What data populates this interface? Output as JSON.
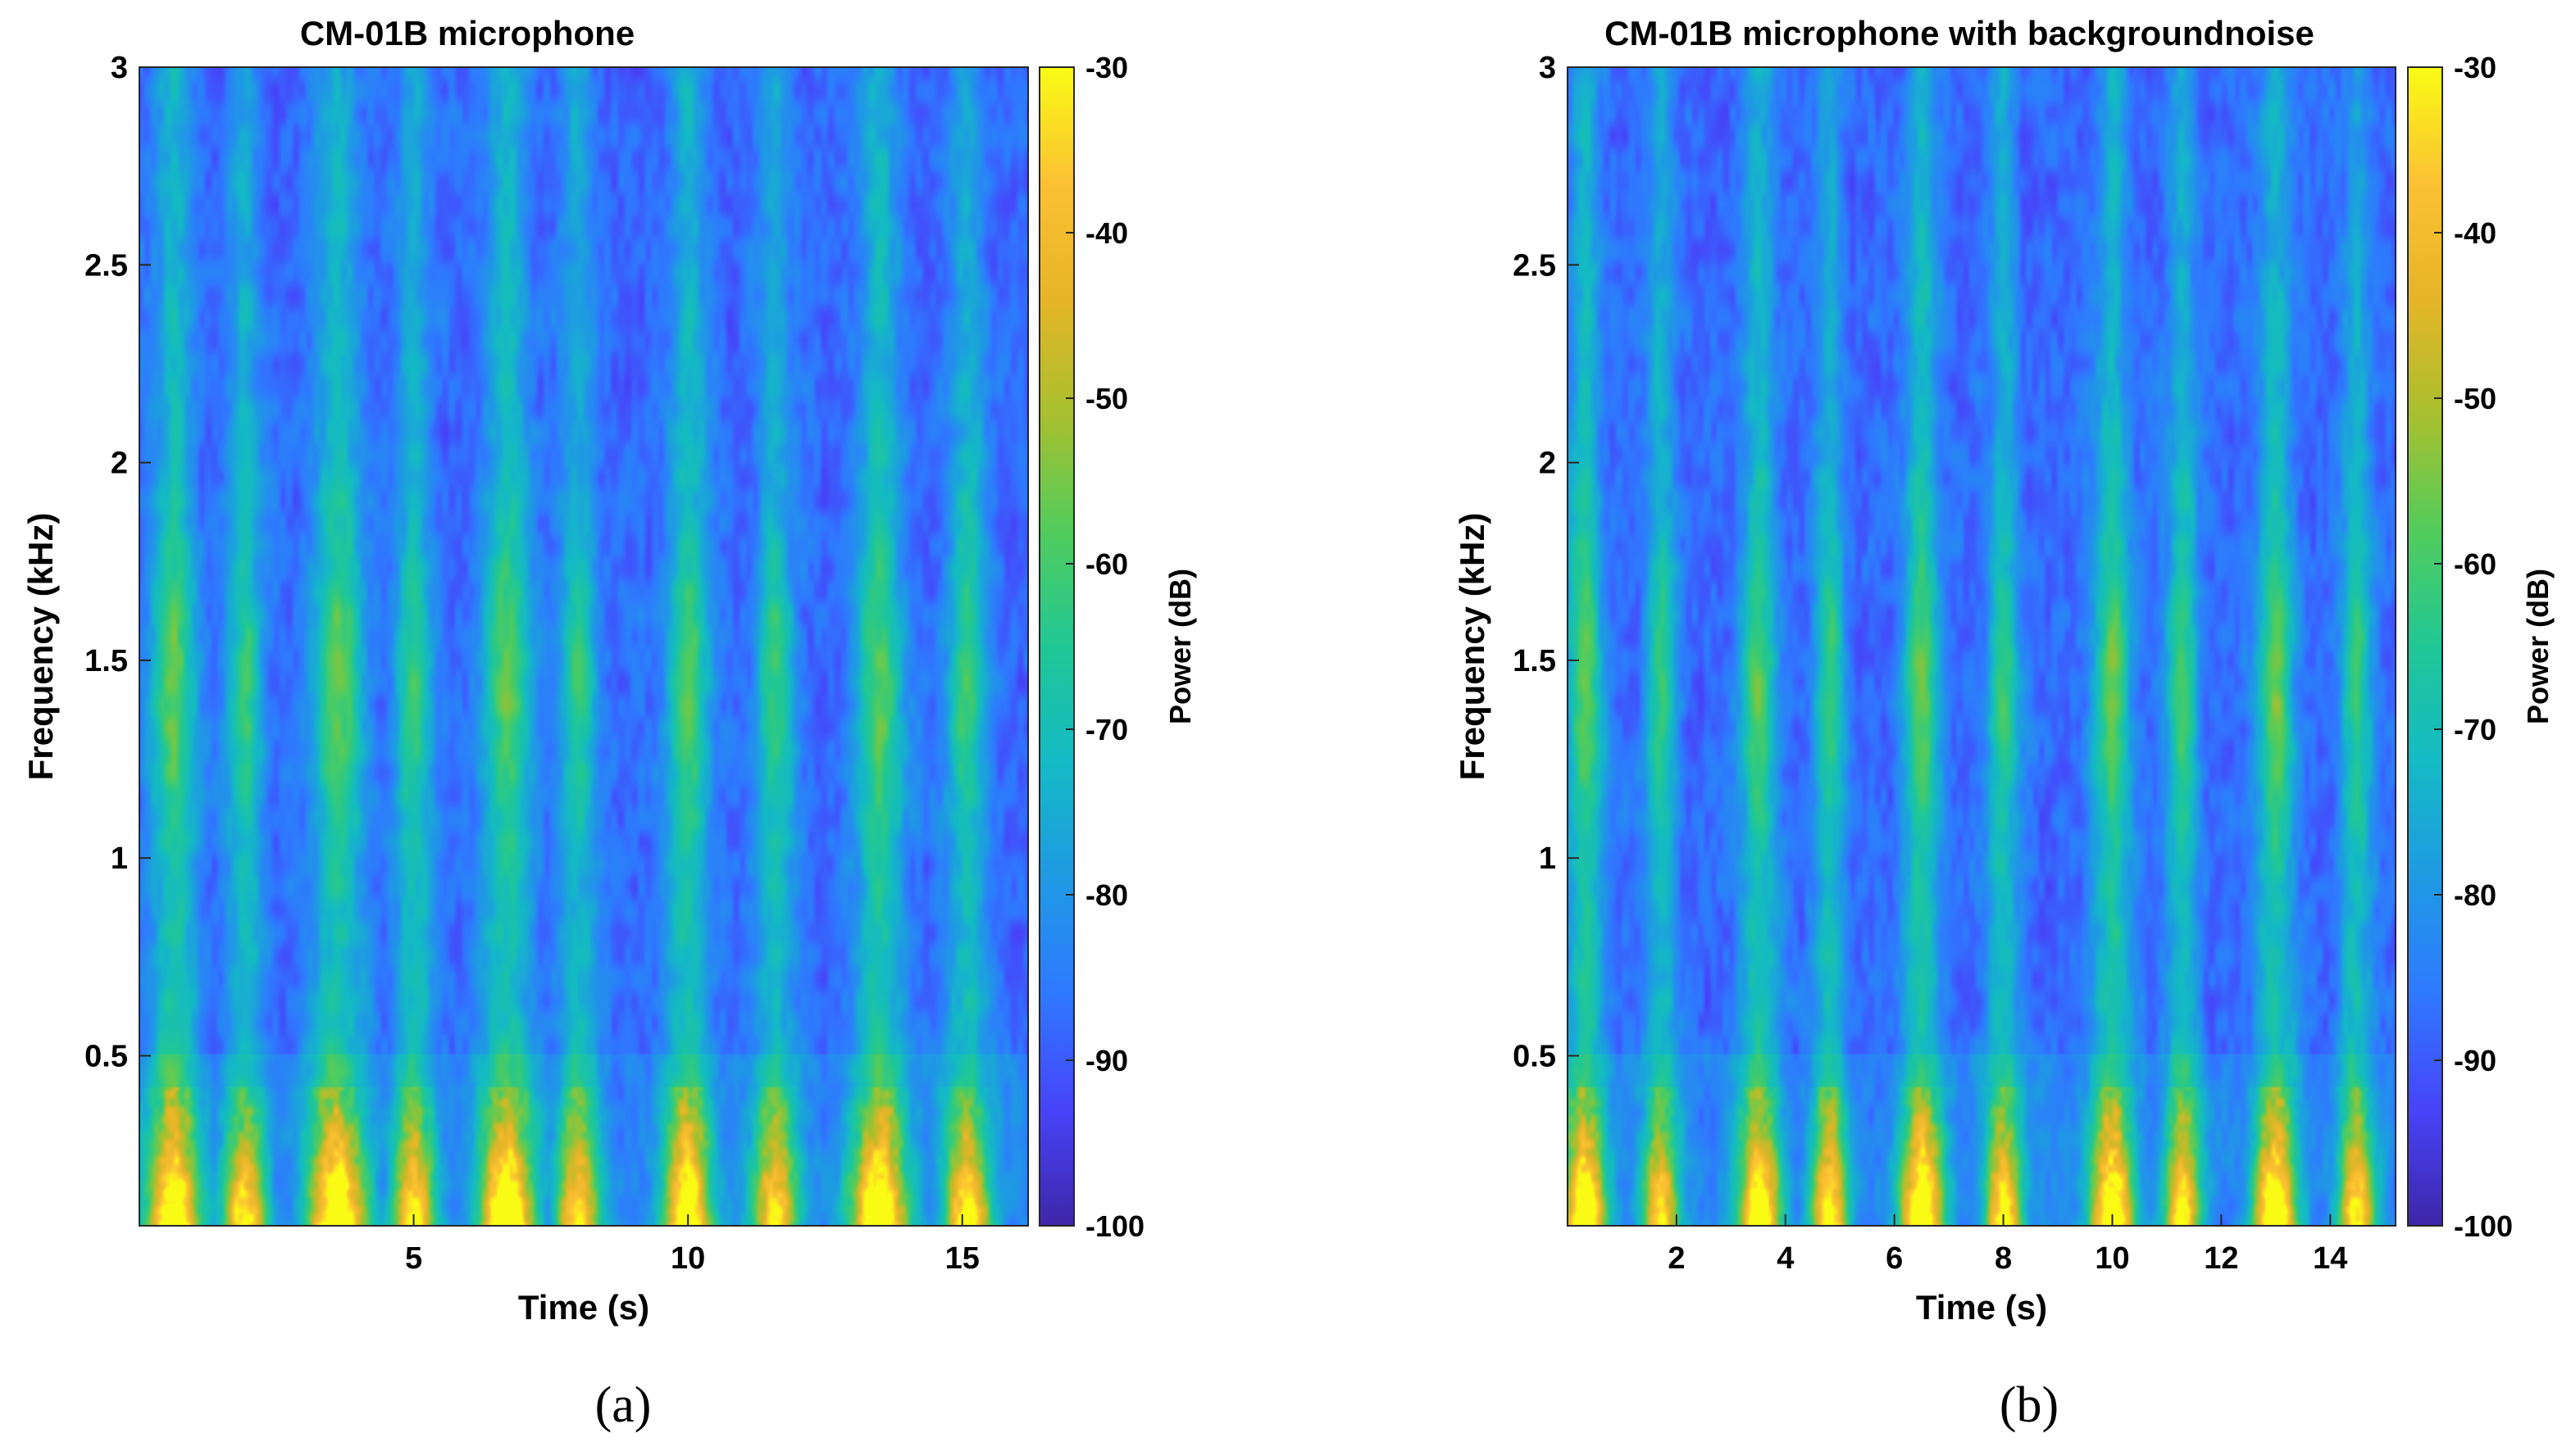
{
  "colormap": [
    "#3e26a8",
    "#4743f8",
    "#2f79ff",
    "#1f9ae4",
    "#14bac5",
    "#20c795",
    "#52cc5c",
    "#a8c02e",
    "#e6b527",
    "#fbc133",
    "#f9fb15"
  ],
  "chart_data": [
    {
      "type": "heatmap",
      "title": "CM-01B microphone",
      "xlabel": "Time (s)",
      "ylabel": "Frequency (kHz)",
      "colorbar_label": "Power (dB)",
      "xlim": [
        0,
        16.2
      ],
      "ylim": [
        0.07,
        3
      ],
      "clim": [
        -100,
        -30
      ],
      "xticks": [
        5,
        10,
        15
      ],
      "yticks": [
        0.5,
        1,
        1.5,
        2,
        2.5,
        3
      ],
      "cticks": [
        -30,
        -40,
        -50,
        -60,
        -70,
        -80,
        -90,
        -100
      ],
      "panel_label": "(a)",
      "bursts": [
        {
          "t": 0.6,
          "w": 0.32,
          "amp": 1.0
        },
        {
          "t": 1.9,
          "w": 0.26,
          "amp": 0.82
        },
        {
          "t": 3.6,
          "w": 0.36,
          "amp": 1.0
        },
        {
          "t": 5.0,
          "w": 0.26,
          "amp": 0.82
        },
        {
          "t": 6.7,
          "w": 0.34,
          "amp": 1.0
        },
        {
          "t": 8.0,
          "w": 0.26,
          "amp": 0.78
        },
        {
          "t": 10.0,
          "w": 0.3,
          "amp": 0.96
        },
        {
          "t": 11.6,
          "w": 0.28,
          "amp": 0.8
        },
        {
          "t": 13.5,
          "w": 0.34,
          "amp": 1.0
        },
        {
          "t": 15.1,
          "w": 0.28,
          "amp": 0.85
        }
      ]
    },
    {
      "type": "heatmap",
      "title": "CM-01B microphone with backgroundnoise",
      "xlabel": "Time (s)",
      "ylabel": "Frequency (kHz)",
      "colorbar_label": "Power (dB)",
      "xlim": [
        0,
        15.2
      ],
      "ylim": [
        0.07,
        3
      ],
      "clim": [
        -100,
        -30
      ],
      "xticks": [
        2,
        4,
        6,
        8,
        10,
        12,
        14
      ],
      "yticks": [
        0.5,
        1,
        1.5,
        2,
        2.5,
        3
      ],
      "cticks": [
        -30,
        -40,
        -50,
        -60,
        -70,
        -80,
        -90,
        -100
      ],
      "panel_label": "(b)",
      "bursts": [
        {
          "t": 0.3,
          "w": 0.26,
          "amp": 1.0
        },
        {
          "t": 1.7,
          "w": 0.22,
          "amp": 0.8
        },
        {
          "t": 3.5,
          "w": 0.26,
          "amp": 0.95
        },
        {
          "t": 4.8,
          "w": 0.22,
          "amp": 0.85
        },
        {
          "t": 6.5,
          "w": 0.26,
          "amp": 1.0
        },
        {
          "t": 8.0,
          "w": 0.22,
          "amp": 0.85
        },
        {
          "t": 10.0,
          "w": 0.26,
          "amp": 1.0
        },
        {
          "t": 11.3,
          "w": 0.22,
          "amp": 0.85
        },
        {
          "t": 13.0,
          "w": 0.26,
          "amp": 1.0
        },
        {
          "t": 14.5,
          "w": 0.22,
          "amp": 0.82
        }
      ]
    }
  ]
}
